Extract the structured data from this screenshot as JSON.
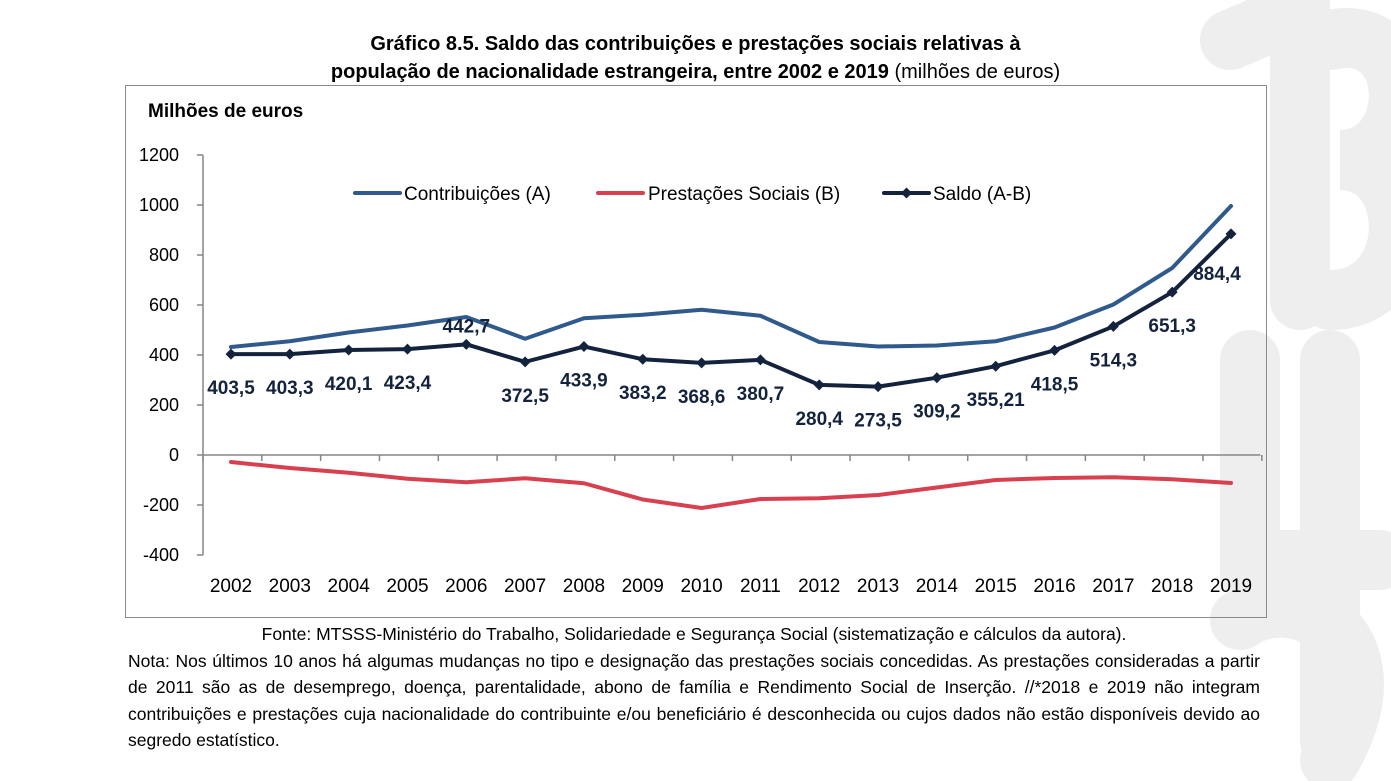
{
  "title": {
    "line1": "Gráfico 8.5. Saldo das contribuições e prestações sociais relativas à",
    "line2_bold": "população de nacionalidade estrangeira, entre 2002 e 2019",
    "line2_unit": "(milhões de euros)"
  },
  "chart_data": {
    "type": "line",
    "ylabel": "Milhões de euros",
    "xlabel": "",
    "ylim": [
      -400,
      1200
    ],
    "yticks": [
      "1200",
      "1000",
      "800",
      "600",
      "400",
      "200",
      "0",
      "-200",
      "-400"
    ],
    "categories": [
      "2002",
      "2003",
      "2004",
      "2005",
      "2006",
      "2007",
      "2008",
      "2009",
      "2010",
      "2011",
      "2012",
      "2013",
      "2014",
      "2015",
      "2016",
      "2017",
      "2018",
      "2019"
    ],
    "legend_position": "top-center",
    "grid": false,
    "series": [
      {
        "name": "Contribuições (A)",
        "color": "#2f5a8b",
        "values": [
          432,
          455,
          490,
          518,
          552,
          465,
          547,
          561,
          581,
          557,
          452,
          434,
          438,
          455,
          510,
          602,
          748,
          996
        ]
      },
      {
        "name": "Prestações Sociais (B)",
        "color": "#d8404f",
        "values": [
          -28,
          -52,
          -71,
          -95,
          -109,
          -93,
          -113,
          -178,
          -212,
          -176,
          -173,
          -160,
          -130,
          -100,
          -92,
          -89,
          -97,
          -112
        ]
      },
      {
        "name": "Saldo (A-B)",
        "color": "#14233d",
        "marker": "diamond",
        "values": [
          403.5,
          403.3,
          420.1,
          423.4,
          442.7,
          372.5,
          433.9,
          383.2,
          368.6,
          380.7,
          280.4,
          273.5,
          309.2,
          355.21,
          418.5,
          514.3,
          651.3,
          884.4
        ],
        "labels": [
          "403,5",
          "403,3",
          "420,1",
          "423,4",
          "442,7",
          "372,5",
          "433,9",
          "383,2",
          "368,6",
          "380,7",
          "280,4",
          "273,5",
          "309,2",
          "355,21",
          "418,5",
          "514,3",
          "651,3",
          "884,4"
        ]
      }
    ]
  },
  "source": "Fonte: MTSSS-Ministério do Trabalho, Solidariedade e Segurança Social (sistematização e cálculos da autora).",
  "note": "Nota: Nos últimos 10 anos há algumas mudanças no tipo e designação das prestações sociais concedidas. As prestações consideradas a partir de 2011 são as de desemprego, doença, parentalidade, abono de família e Rendimento Social de Inserção. //*2018 e 2019 não integram contribuições e prestações cuja nacionalidade do contribuinte e/ou beneficiário é desconhecida ou cujos dados não estão disponíveis devido ao segredo estatístico."
}
